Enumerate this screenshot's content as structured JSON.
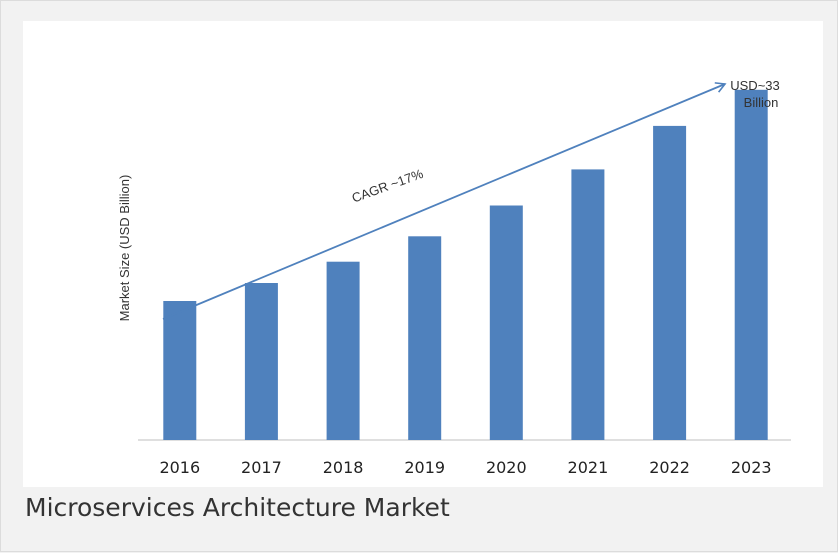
{
  "caption": "Microservices Architecture Market",
  "chart_data": {
    "type": "bar",
    "title": "",
    "xlabel": "",
    "ylabel": "Market Size (USD Billion)",
    "categories": [
      "2016",
      "2017",
      "2018",
      "2019",
      "2020",
      "2021",
      "2022",
      "2023"
    ],
    "values": [
      13.1,
      14.8,
      16.8,
      19.2,
      22.1,
      25.5,
      29.6,
      33.0
    ],
    "ylim": [
      0,
      36
    ],
    "grid": false,
    "bar_color": "#4f81bd",
    "axis_color": "#bfbfbf",
    "annotations": {
      "cagr_label": "CAGR ~17%",
      "end_value_line1": "USD~33",
      "end_value_line2": "Billion",
      "trend_color": "#4f81bd"
    }
  }
}
